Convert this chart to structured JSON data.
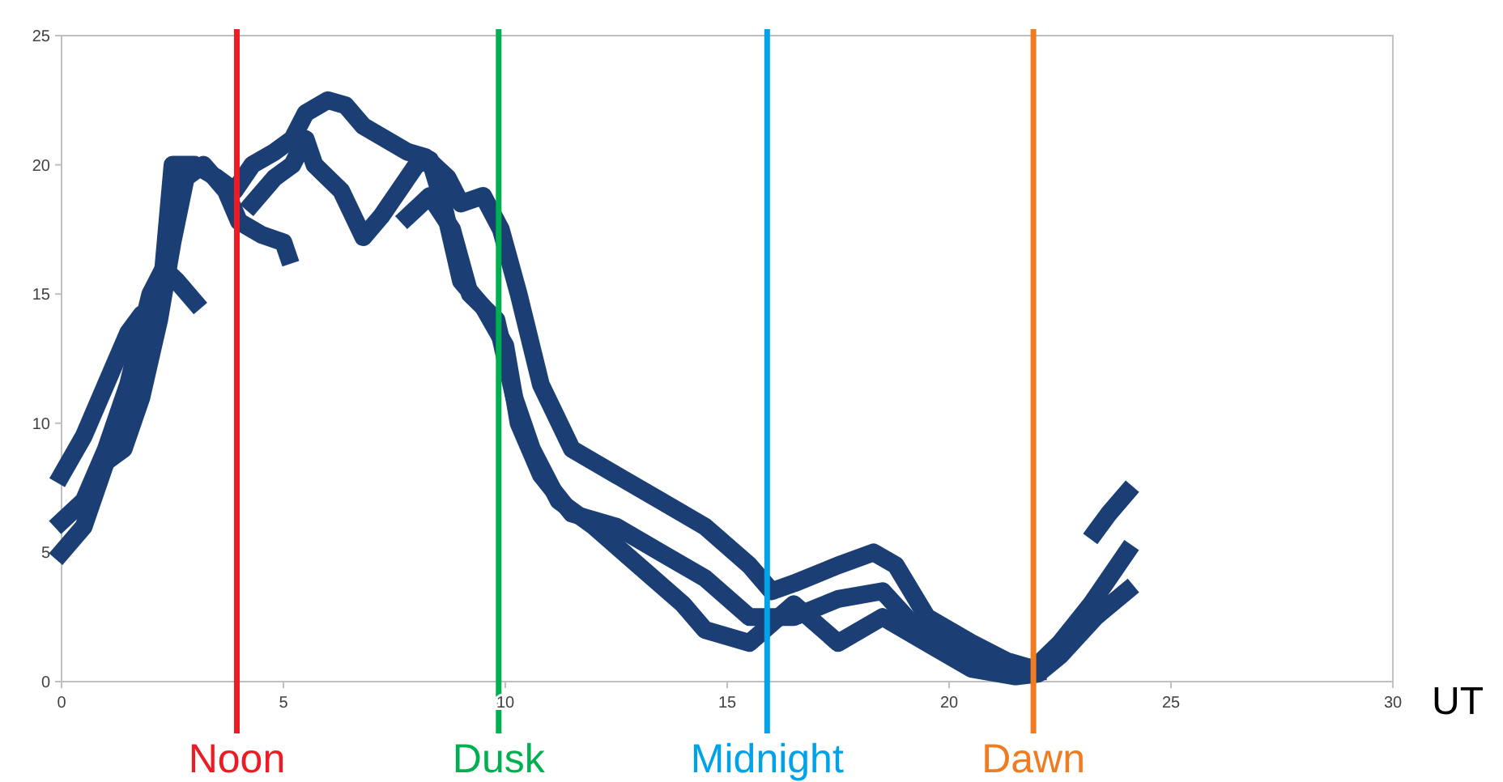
{
  "chart_data": {
    "type": "line",
    "xlabel": "UT",
    "xlim": [
      0,
      30
    ],
    "xticks": [
      0,
      5,
      10,
      15,
      20,
      25,
      30
    ],
    "ylim": [
      0,
      25
    ],
    "yticks": [
      0,
      5,
      10,
      15,
      20,
      25
    ],
    "grid": false,
    "line_style": "solid",
    "series": [
      {
        "color": "#1b3f75",
        "x": [
          0,
          0.5,
          1,
          1.5,
          1.8,
          2.2,
          2.5,
          3,
          3.5,
          3.9,
          4.3,
          4.8,
          5.2,
          5.5,
          6,
          6.4,
          6.8,
          7.3,
          7.8,
          8.2,
          8.7,
          9,
          9.5,
          9.9,
          10.3,
          10.8,
          11.5,
          12.5,
          13.5,
          14.5,
          15.5,
          16,
          16.5,
          17.5,
          18.3,
          18.8,
          19.5,
          20.5,
          21.3,
          21.9,
          22.5,
          23.2,
          24
        ],
        "values": [
          8,
          9.5,
          11.5,
          13.5,
          14.2,
          14.2,
          20,
          20,
          19.5,
          19,
          20,
          20.5,
          21,
          22,
          22.5,
          22.3,
          21.5,
          21,
          20.5,
          20.3,
          19.5,
          18.5,
          18.8,
          17.5,
          15,
          11.5,
          9,
          8,
          7,
          6,
          4.5,
          3.5,
          3.8,
          4.5,
          5,
          4.5,
          2.5,
          1.5,
          0.8,
          0.5,
          1.5,
          3,
          5
        ]
      },
      {
        "color": "#1b3f75",
        "x": [
          0,
          0.5,
          1,
          1.5,
          2,
          2.3,
          2.6,
          3
        ],
        "values": [
          6.2,
          7,
          9,
          11.5,
          15,
          16,
          15.5,
          14.7
        ]
      },
      {
        "color": "#1b3f75",
        "x": [
          0,
          0.5,
          1,
          1.4,
          1.8,
          2.2,
          2.5,
          2.8,
          3.2,
          3.7,
          4,
          4.5,
          5,
          5.1
        ],
        "values": [
          5,
          6,
          8.5,
          9,
          11,
          14,
          17,
          19.5,
          20,
          19,
          17.8,
          17.3,
          17,
          16.5
        ]
      },
      {
        "color": "#1b3f75",
        "x": [
          4.3,
          4.8,
          5.2,
          5.5,
          5.7,
          6,
          6.3,
          6.8,
          7.2,
          7.6,
          8,
          8.3,
          8.6,
          9,
          9.5,
          10,
          10.3,
          10.8,
          11.5,
          12.5,
          13.5,
          14.5,
          15.5,
          16.5,
          17.5,
          18.5,
          19.3,
          20.5,
          21.5,
          22
        ],
        "values": [
          18.5,
          19.5,
          20,
          21,
          20,
          19.5,
          19,
          17.2,
          18,
          19,
          20,
          20.2,
          18.5,
          15.5,
          14.5,
          13,
          10,
          8,
          6.5,
          6,
          5,
          4,
          2.5,
          2.5,
          3.2,
          3.5,
          2,
          0.8,
          0.4,
          0.4
        ]
      },
      {
        "color": "#1b3f75",
        "x": [
          7.8,
          8.3,
          8.8,
          9.2,
          9.8,
          10.2,
          10.6,
          11.2,
          12,
          13,
          14,
          14.5,
          15.5,
          16.5,
          17.5,
          18.5,
          19.5,
          20.5,
          21.5,
          22,
          22.5,
          23.3,
          24
        ],
        "values": [
          18,
          18.8,
          17.5,
          15,
          14,
          11,
          9,
          7,
          6,
          4.5,
          3,
          2,
          1.5,
          3,
          1.5,
          2.5,
          1.5,
          0.5,
          0.2,
          0.3,
          1,
          2.5,
          3.5
        ]
      },
      {
        "color": "#1b3f75",
        "x": [
          23.3,
          23.6,
          24
        ],
        "values": [
          5.8,
          6.5,
          7.3
        ]
      }
    ],
    "ref_lines": [
      {
        "axis": "x",
        "value": 3.95,
        "label": "Noon",
        "color": "#ed1c24"
      },
      {
        "axis": "x",
        "value": 9.85,
        "label": "Dusk",
        "color": "#00b050"
      },
      {
        "axis": "x",
        "value": 15.9,
        "label": "Midnight",
        "color": "#00a2e8"
      },
      {
        "axis": "x",
        "value": 21.9,
        "label": "Dawn",
        "color": "#f07c22"
      }
    ]
  }
}
